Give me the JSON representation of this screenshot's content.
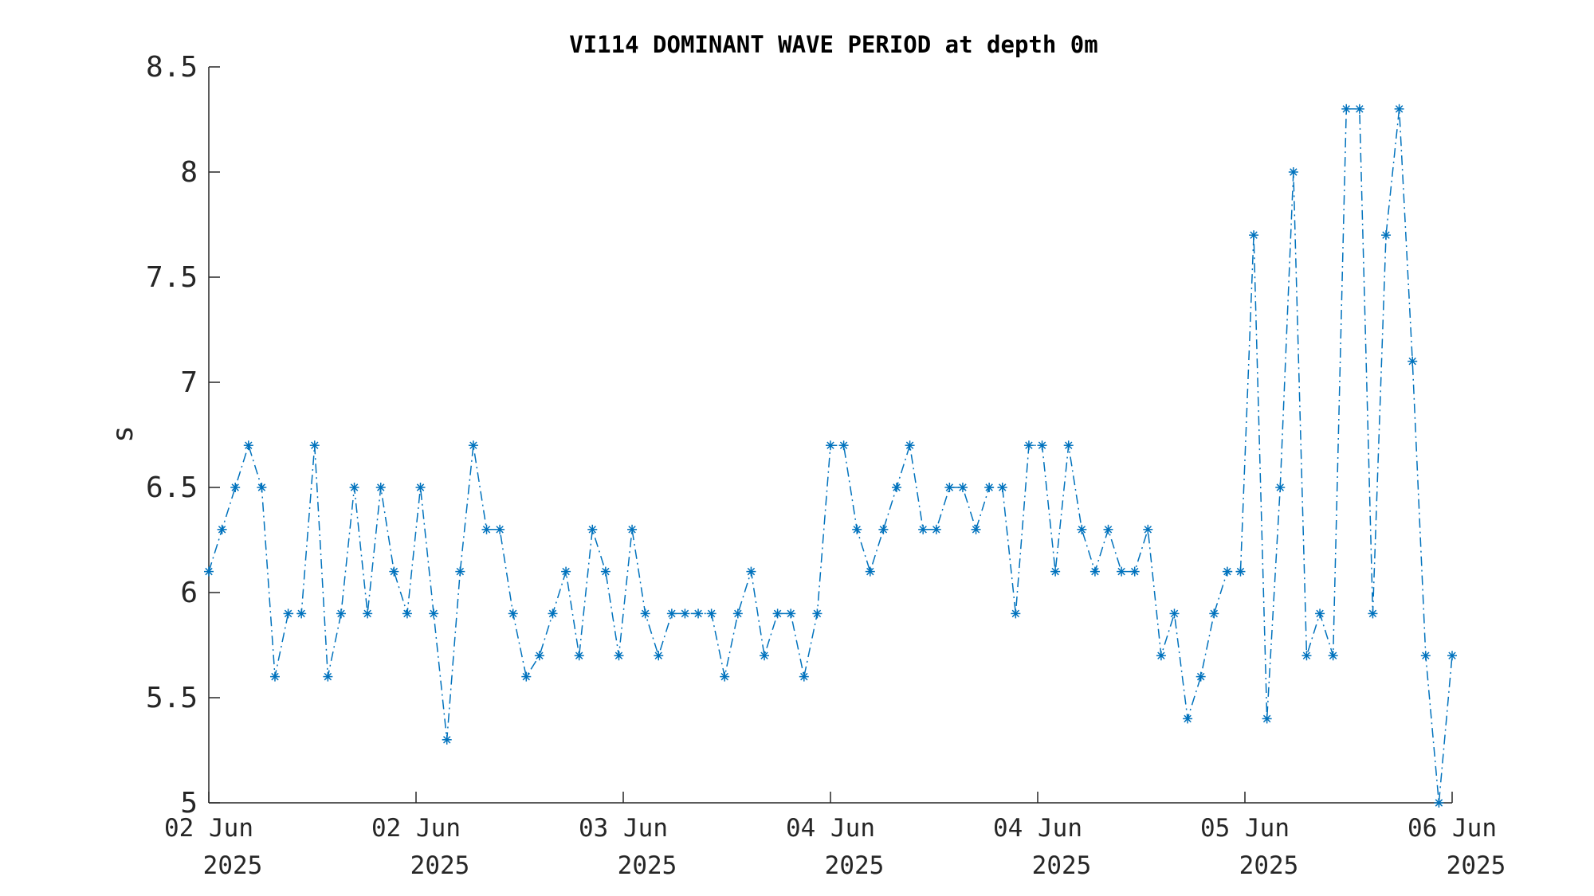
{
  "chart_data": {
    "type": "line",
    "title": "VI114 DOMINANT WAVE PERIOD at depth 0m",
    "xlabel": "",
    "ylabel": "s",
    "ylim": [
      5,
      8.5
    ],
    "yticks": [
      "5",
      "5.5",
      "6",
      "6.5",
      "7",
      "7.5",
      "8",
      "8.5"
    ],
    "xticks": [
      {
        "line1": "02 Jun",
        "line2": "2025"
      },
      {
        "line1": "02 Jun",
        "line2": "2025"
      },
      {
        "line1": "03 Jun",
        "line2": "2025"
      },
      {
        "line1": "04 Jun",
        "line2": "2025"
      },
      {
        "line1": "04 Jun",
        "line2": "2025"
      },
      {
        "line1": "05 Jun",
        "line2": "2025"
      },
      {
        "line1": "06 Jun",
        "line2": "2025"
      }
    ],
    "grid": false,
    "line_style": "dash-dot",
    "marker": "asterisk",
    "series_color": "#0072BD",
    "series": [
      {
        "values": [
          6.1,
          6.3,
          6.5,
          6.7,
          6.5,
          5.6,
          5.9,
          5.9,
          6.7,
          5.6,
          5.9,
          6.5,
          5.9,
          6.5,
          6.1,
          5.9,
          6.5,
          5.9,
          5.3,
          6.1,
          6.7,
          6.3,
          6.3,
          5.9,
          5.6,
          5.7,
          5.9,
          6.1,
          5.7,
          6.3,
          6.1,
          5.7,
          6.3,
          5.9,
          5.7,
          5.9,
          5.9,
          5.9,
          5.9,
          5.6,
          5.9,
          6.1,
          5.7,
          5.9,
          5.9,
          5.6,
          5.9,
          6.7,
          6.7,
          6.3,
          6.1,
          6.3,
          6.5,
          6.7,
          6.3,
          6.3,
          6.5,
          6.5,
          6.3,
          6.5,
          6.5,
          5.9,
          6.7,
          6.7,
          6.1,
          6.7,
          6.3,
          6.1,
          6.3,
          6.1,
          6.1,
          6.3,
          5.7,
          5.9,
          5.4,
          5.6,
          5.9,
          6.1,
          6.1,
          7.7,
          5.4,
          6.5,
          8.0,
          5.7,
          5.9,
          5.7,
          8.3,
          8.3,
          5.9,
          7.7,
          8.3,
          7.1,
          5.7,
          5.0,
          5.7
        ]
      }
    ]
  }
}
